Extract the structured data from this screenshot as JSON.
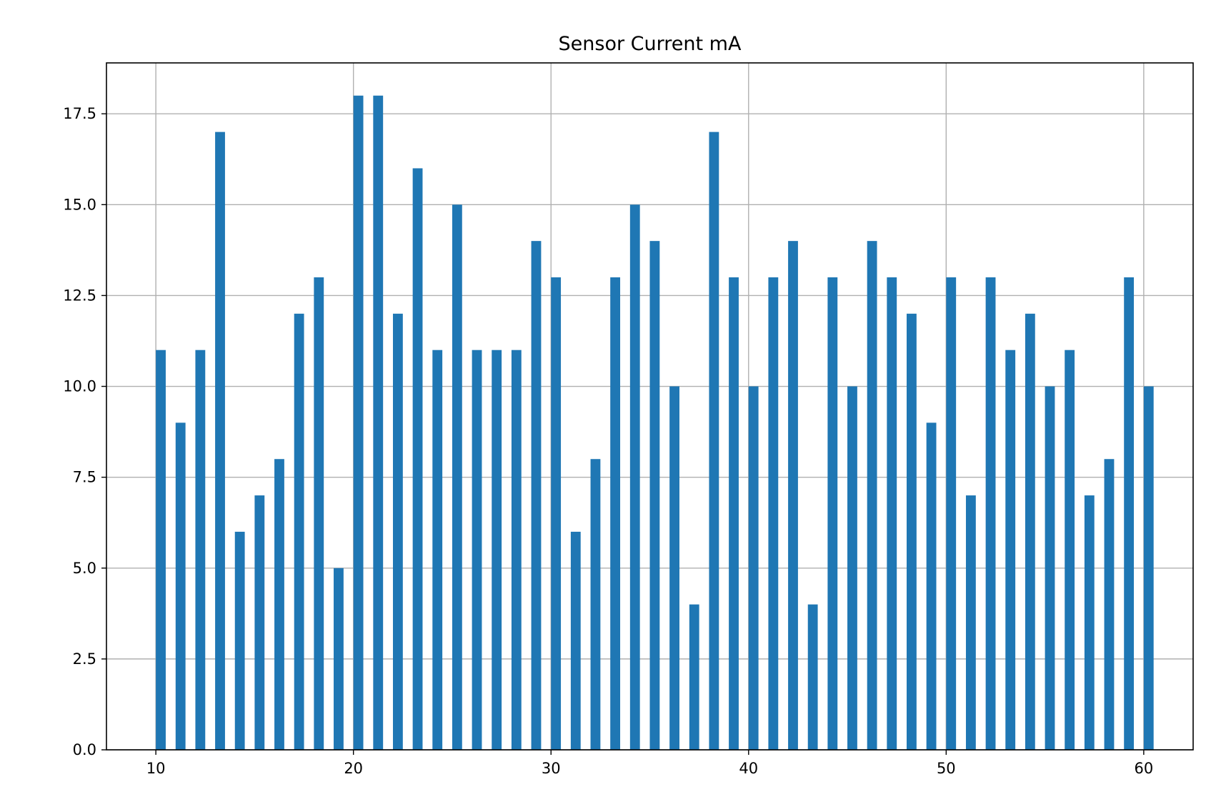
{
  "chart_data": {
    "type": "bar",
    "title": "Sensor Current mA",
    "xlabel": "",
    "ylabel": "",
    "x": [
      10,
      11,
      12,
      13,
      14,
      15,
      16,
      17,
      18,
      19,
      20,
      21,
      22,
      23,
      24,
      25,
      26,
      27,
      28,
      29,
      30,
      31,
      32,
      33,
      34,
      35,
      36,
      37,
      38,
      39,
      40,
      41,
      42,
      43,
      44,
      45,
      46,
      47,
      48,
      49,
      50,
      51,
      52,
      53,
      54,
      55,
      56,
      57,
      58,
      59,
      60
    ],
    "values": [
      11,
      9,
      11,
      17,
      6,
      7,
      8,
      12,
      13,
      5,
      18,
      18,
      12,
      16,
      11,
      15,
      11,
      11,
      11,
      14,
      13,
      6,
      8,
      13,
      15,
      14,
      10,
      4,
      17,
      13,
      10,
      13,
      14,
      4,
      13,
      10,
      14,
      13,
      12,
      9,
      13,
      7,
      13,
      11,
      12,
      10,
      11,
      7,
      8,
      13,
      10
    ],
    "xlim": [
      7.5,
      62.5
    ],
    "ylim": [
      0,
      18.9
    ],
    "xticks": [
      10,
      20,
      30,
      40,
      50,
      60
    ],
    "xtick_labels": [
      "10",
      "20",
      "30",
      "40",
      "50",
      "60"
    ],
    "yticks": [
      0,
      2.5,
      5,
      7.5,
      10,
      12.5,
      15,
      17.5
    ],
    "ytick_labels": [
      "0.0",
      "2.5",
      "5.0",
      "7.5",
      "10.0",
      "12.5",
      "15.0",
      "17.5"
    ],
    "grid": true,
    "bar_color": "#1f77b4",
    "grid_color": "#b0b0b0"
  }
}
